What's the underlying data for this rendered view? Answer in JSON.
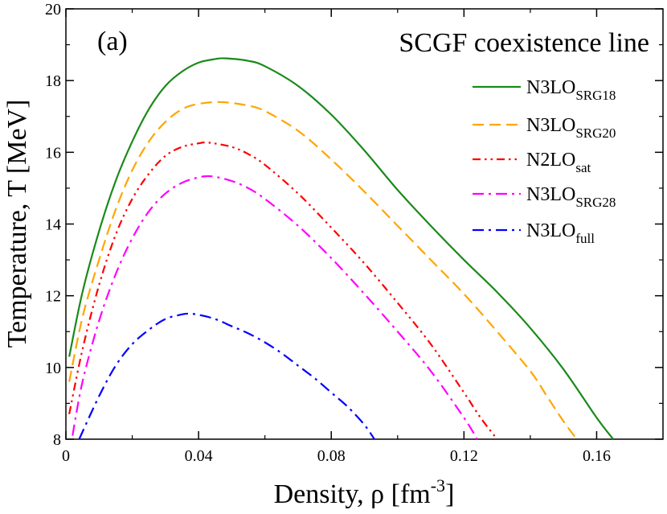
{
  "chart_data": {
    "type": "line",
    "panel_label": "(a)",
    "title": "SCGF coexistence line",
    "xlabel": {
      "main": "Density, ρ [fm",
      "sup": "-3",
      "end": "]"
    },
    "ylabel": "Temperature, T [MeV]",
    "xlim": [
      0,
      0.18
    ],
    "ylim": [
      8,
      20
    ],
    "xticks": [
      0,
      0.04,
      0.08,
      0.12,
      0.16
    ],
    "xtick_labels": [
      "0",
      "0.04",
      "0.08",
      "0.12",
      "0.16"
    ],
    "yticks": [
      8,
      10,
      12,
      14,
      16,
      18,
      20
    ],
    "ytick_labels": [
      "8",
      "10",
      "12",
      "14",
      "16",
      "18",
      "20"
    ],
    "legend_position": "top-right",
    "series": [
      {
        "name": "N3LO",
        "sub": "SRG18",
        "color": "#1a8a1a",
        "dash": "solid",
        "x": [
          0.001,
          0.005,
          0.01,
          0.015,
          0.02,
          0.025,
          0.03,
          0.035,
          0.04,
          0.045,
          0.048,
          0.055,
          0.06,
          0.07,
          0.08,
          0.09,
          0.1,
          0.11,
          0.12,
          0.13,
          0.14,
          0.15,
          0.16,
          0.165
        ],
        "y": [
          10.3,
          12.1,
          13.8,
          15.2,
          16.3,
          17.2,
          17.85,
          18.25,
          18.5,
          18.6,
          18.62,
          18.55,
          18.4,
          17.85,
          17.05,
          16.05,
          14.95,
          13.95,
          13.0,
          12.1,
          11.1,
          9.95,
          8.6,
          8.0
        ]
      },
      {
        "name": "N3LO",
        "sub": "SRG20",
        "color": "#ffa500",
        "dash": "long",
        "x": [
          0.001,
          0.005,
          0.01,
          0.015,
          0.02,
          0.025,
          0.03,
          0.035,
          0.04,
          0.047,
          0.055,
          0.06,
          0.07,
          0.08,
          0.09,
          0.1,
          0.11,
          0.12,
          0.13,
          0.14,
          0.145,
          0.15,
          0.154
        ],
        "y": [
          9.6,
          11.4,
          13.0,
          14.4,
          15.5,
          16.3,
          16.85,
          17.2,
          17.35,
          17.4,
          17.3,
          17.15,
          16.6,
          15.8,
          14.9,
          13.95,
          13.0,
          12.05,
          11.0,
          9.9,
          9.2,
          8.5,
          8.0
        ]
      },
      {
        "name": "N2LO",
        "sub": "sat",
        "color": "#ff0000",
        "dash": "dashdotdot",
        "x": [
          0.001,
          0.005,
          0.01,
          0.015,
          0.02,
          0.025,
          0.03,
          0.035,
          0.04,
          0.043,
          0.05,
          0.055,
          0.06,
          0.07,
          0.08,
          0.09,
          0.1,
          0.11,
          0.12,
          0.125,
          0.13
        ],
        "y": [
          8.7,
          10.5,
          12.3,
          13.7,
          14.7,
          15.4,
          15.9,
          16.15,
          16.25,
          16.27,
          16.15,
          15.95,
          15.65,
          14.85,
          13.9,
          12.9,
          11.8,
          10.65,
          9.3,
          8.6,
          8.0
        ]
      },
      {
        "name": "N3LO",
        "sub": "SRG28",
        "color": "#ff00ff",
        "dash": "dashdot",
        "x": [
          0.002,
          0.005,
          0.01,
          0.015,
          0.02,
          0.025,
          0.03,
          0.035,
          0.04,
          0.044,
          0.05,
          0.055,
          0.06,
          0.07,
          0.08,
          0.09,
          0.1,
          0.11,
          0.12,
          0.124
        ],
        "y": [
          8.1,
          9.6,
          11.3,
          12.6,
          13.6,
          14.35,
          14.85,
          15.15,
          15.3,
          15.33,
          15.2,
          15.0,
          14.7,
          13.95,
          13.05,
          12.05,
          11.0,
          9.9,
          8.6,
          8.0
        ]
      },
      {
        "name": "N3LO",
        "sub": "full",
        "color": "#0000ff",
        "dash": "dashdot",
        "x": [
          0.004,
          0.01,
          0.015,
          0.02,
          0.025,
          0.03,
          0.035,
          0.037,
          0.04,
          0.045,
          0.05,
          0.055,
          0.06,
          0.065,
          0.07,
          0.075,
          0.08,
          0.085,
          0.09,
          0.093
        ],
        "y": [
          8.0,
          9.2,
          10.05,
          10.65,
          11.05,
          11.35,
          11.48,
          11.5,
          11.47,
          11.35,
          11.15,
          10.95,
          10.7,
          10.4,
          10.05,
          9.7,
          9.3,
          8.9,
          8.4,
          8.0
        ]
      }
    ]
  }
}
